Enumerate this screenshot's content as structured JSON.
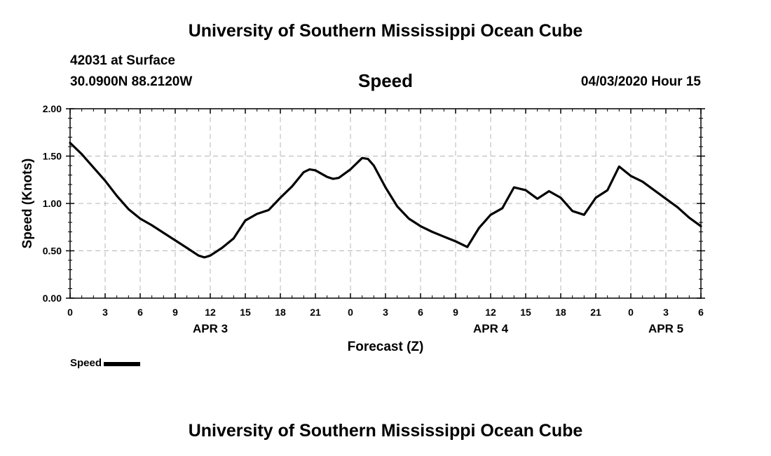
{
  "header": {
    "title": "University of Southern Mississippi Ocean Cube",
    "station": "42031 at Surface",
    "coords": "30.0900N 88.2120W",
    "subtitle": "Speed",
    "datetime": "04/03/2020 Hour 15"
  },
  "footer": {
    "title": "University of Southern Mississippi Ocean Cube"
  },
  "legend": {
    "label": "Speed"
  },
  "chart_data": {
    "type": "line",
    "title": "Speed",
    "xlabel": "Forecast (Z)",
    "ylabel": "Speed (Knots)",
    "xlim": [
      0,
      54
    ],
    "ylim": [
      0,
      2
    ],
    "grid": true,
    "legend_position": "bottom-left",
    "x_ticks": [
      {
        "value": 0,
        "label": "0"
      },
      {
        "value": 3,
        "label": "3"
      },
      {
        "value": 6,
        "label": "6"
      },
      {
        "value": 9,
        "label": "9"
      },
      {
        "value": 12,
        "label": "12"
      },
      {
        "value": 15,
        "label": "15"
      },
      {
        "value": 18,
        "label": "18"
      },
      {
        "value": 21,
        "label": "21"
      },
      {
        "value": 24,
        "label": "0"
      },
      {
        "value": 27,
        "label": "3"
      },
      {
        "value": 30,
        "label": "6"
      },
      {
        "value": 33,
        "label": "9"
      },
      {
        "value": 36,
        "label": "12"
      },
      {
        "value": 39,
        "label": "15"
      },
      {
        "value": 42,
        "label": "18"
      },
      {
        "value": 45,
        "label": "21"
      },
      {
        "value": 48,
        "label": "0"
      },
      {
        "value": 51,
        "label": "3"
      },
      {
        "value": 54,
        "label": "6"
      }
    ],
    "y_ticks": [
      {
        "value": 0,
        "label": "0.00"
      },
      {
        "value": 0.5,
        "label": "0.50"
      },
      {
        "value": 1,
        "label": "1.00"
      },
      {
        "value": 1.5,
        "label": "1.50"
      },
      {
        "value": 2,
        "label": "2.00"
      }
    ],
    "date_labels": [
      {
        "value": 12,
        "label": "APR 3"
      },
      {
        "value": 36,
        "label": "APR 4"
      },
      {
        "value": 51,
        "label": "APR 5"
      }
    ],
    "series": [
      {
        "name": "Speed",
        "color": "#000000",
        "x": [
          0,
          1,
          2,
          3,
          4,
          5,
          6,
          7,
          8,
          9,
          10,
          11,
          11.5,
          12,
          13,
          14,
          15,
          16,
          17,
          18,
          19,
          20,
          20.5,
          21,
          22,
          22.5,
          23,
          24,
          25,
          25.5,
          26,
          27,
          28,
          29,
          30,
          31,
          32,
          33,
          34,
          35,
          36,
          37,
          38,
          39,
          40,
          41,
          42,
          43,
          44,
          45,
          46,
          47,
          47.5,
          48,
          49,
          50,
          51,
          52,
          53,
          54
        ],
        "values": [
          1.64,
          1.52,
          1.38,
          1.24,
          1.08,
          0.94,
          0.84,
          0.77,
          0.69,
          0.61,
          0.53,
          0.45,
          0.43,
          0.45,
          0.53,
          0.63,
          0.82,
          0.89,
          0.93,
          1.06,
          1.18,
          1.33,
          1.36,
          1.35,
          1.28,
          1.26,
          1.27,
          1.36,
          1.48,
          1.47,
          1.4,
          1.17,
          0.97,
          0.84,
          0.76,
          0.7,
          0.65,
          0.6,
          0.54,
          0.74,
          0.88,
          0.95,
          1.17,
          1.14,
          1.05,
          1.13,
          1.06,
          0.92,
          0.88,
          1.06,
          1.14,
          1.39,
          1.34,
          1.29,
          1.23,
          1.14,
          1.05,
          0.96,
          0.85,
          0.76
        ]
      }
    ]
  }
}
